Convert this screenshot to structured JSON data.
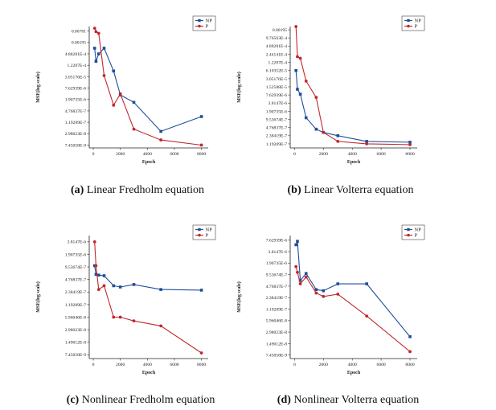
{
  "series_styles": [
    {
      "name": "NP",
      "color": "#1f4e99",
      "marker": "square"
    },
    {
      "name": "P",
      "color": "#c0282d",
      "marker": "circle"
    }
  ],
  "chart_data": [
    {
      "type": "line",
      "caption_tag": "(a)",
      "caption_text": "Linear Fredholm equation",
      "xlabel": "Epoch",
      "ylabel": "MSE(log scale)",
      "yscale": "log2",
      "xlim": [
        -300,
        8500
      ],
      "xticks": [
        0,
        2000,
        4000,
        6000,
        8000
      ],
      "xtick_labels": [
        "0",
        "2000",
        "4000",
        "6000",
        "8000"
      ],
      "ylim_log2": [
        -27.5,
        -6.2
      ],
      "ytick_log2": [
        -7,
        -9,
        -11,
        -13,
        -15,
        -17,
        -19,
        -21,
        -23,
        -25,
        -27
      ],
      "ytick_labels": [
        "0.00781",
        "0.00195",
        "4.88281E-4",
        "1.2207E-4",
        "3.05176E-5",
        "7.62939E-6",
        "1.90735E-6",
        "4.76837E-7",
        "1.19209E-7",
        "2.98023E-8",
        "7.45058E-9"
      ],
      "series": [
        {
          "name": "NP",
          "x": [
            100,
            200,
            400,
            800,
            1500,
            2000,
            3000,
            5000,
            8000
          ],
          "log2_values": [
            -10.0,
            -12.3,
            -11.0,
            -10.0,
            -14.0,
            -18.2,
            -19.5,
            -24.6,
            -22.0
          ]
        },
        {
          "name": "P",
          "x": [
            100,
            200,
            400,
            800,
            1500,
            2000,
            3000,
            5000,
            8000
          ],
          "log2_values": [
            -6.5,
            -7.1,
            -7.4,
            -14.8,
            -20.0,
            -18.0,
            -24.2,
            -26.1,
            -27.0
          ]
        }
      ]
    },
    {
      "type": "line",
      "caption_tag": "(b)",
      "caption_text": "Linear Volterra equation",
      "xlabel": "Epoch",
      "ylabel": "MSE(log scale)",
      "yscale": "log2",
      "xlim": [
        -300,
        8500
      ],
      "xticks": [
        0,
        2000,
        4000,
        6000,
        8000
      ],
      "xtick_labels": [
        "0",
        "2000",
        "4000",
        "6000",
        "8000"
      ],
      "ylim_log2": [
        -23.5,
        -8.6
      ],
      "ytick_log2": [
        -9,
        -10,
        -11,
        -12,
        -13,
        -14,
        -15,
        -16,
        -17,
        -18,
        -19,
        -20,
        -21,
        -22,
        -23
      ],
      "ytick_labels": [
        "0.00195",
        "9.76563E-4",
        "4.88281E-4",
        "2.44141E-4",
        "1.2207E-4",
        "6.10352E-5",
        "3.05176E-5",
        "1.52588E-5",
        "7.62939E-6",
        "3.8147E-6",
        "1.90735E-6",
        "9.53674E-7",
        "4.76837E-7",
        "2.38419E-7",
        "1.19209E-7"
      ],
      "series": [
        {
          "name": "NP",
          "x": [
            100,
            200,
            400,
            800,
            1500,
            2000,
            3000,
            5000,
            8000
          ],
          "log2_values": [
            -14.0,
            -16.3,
            -16.9,
            -19.8,
            -21.2,
            -21.6,
            -22.0,
            -22.7,
            -22.8
          ]
        },
        {
          "name": "P",
          "x": [
            100,
            200,
            400,
            800,
            1500,
            2000,
            3000,
            5000,
            8000
          ],
          "log2_values": [
            -8.6,
            -12.3,
            -12.5,
            -15.3,
            -17.3,
            -21.6,
            -22.7,
            -23.0,
            -23.1
          ]
        }
      ]
    },
    {
      "type": "line",
      "caption_tag": "(c)",
      "caption_text": "Nonlinear Fredholm equation",
      "xlabel": "Epoch",
      "ylabel": "MSE(log scale)",
      "yscale": "log2",
      "xlim": [
        -300,
        8500
      ],
      "xticks": [
        0,
        2000,
        4000,
        6000,
        8000
      ],
      "xtick_labels": [
        "0",
        "2000",
        "4000",
        "6000",
        "8000"
      ],
      "ylim_log2": [
        -27.3,
        -17.5
      ],
      "ytick_log2": [
        -18,
        -19,
        -20,
        -21,
        -22,
        -23,
        -24,
        -25,
        -26,
        -27
      ],
      "ytick_labels": [
        "3.8147E-6",
        "1.90735E-6",
        "9.53674E-7",
        "4.76837E-7",
        "2.38419E-7",
        "1.19209E-7",
        "5.96046E-8",
        "2.98023E-8",
        "1.49012E-8",
        "7.45058E-9"
      ],
      "series": [
        {
          "name": "NP",
          "x": [
            100,
            200,
            400,
            800,
            1500,
            2000,
            3000,
            5000,
            8000
          ],
          "log2_values": [
            -19.9,
            -20.6,
            -20.65,
            -20.7,
            -21.5,
            -21.6,
            -21.4,
            -21.8,
            -21.85
          ]
        },
        {
          "name": "P",
          "x": [
            100,
            200,
            400,
            800,
            1500,
            2000,
            3000,
            5000,
            8000
          ],
          "log2_values": [
            -18.0,
            -19.9,
            -21.8,
            -21.5,
            -24.0,
            -24.0,
            -24.3,
            -24.7,
            -26.85
          ]
        }
      ]
    },
    {
      "type": "line",
      "caption_tag": "(d)",
      "caption_text": "Nonlinear Volterra equation",
      "xlabel": "Epoch",
      "ylabel": "MSE(log scale)",
      "yscale": "log2",
      "xlim": [
        -300,
        8500
      ],
      "xticks": [
        0,
        2000,
        4000,
        6000,
        8000
      ],
      "xtick_labels": [
        "0",
        "2000",
        "4000",
        "6000",
        "8000"
      ],
      "ylim_log2": [
        -27.3,
        -16.6
      ],
      "ytick_log2": [
        -17,
        -18,
        -19,
        -20,
        -21,
        -22,
        -23,
        -24,
        -25,
        -26,
        -27
      ],
      "ytick_labels": [
        "7.62939E-6",
        "3.8147E-6",
        "1.90735E-6",
        "9.53674E-7",
        "4.76837E-7",
        "2.38419E-7",
        "1.19209E-7",
        "5.96046E-8",
        "2.98023E-8",
        "1.49012E-8",
        "7.45058E-9"
      ],
      "series": [
        {
          "name": "NP",
          "x": [
            100,
            200,
            400,
            800,
            1500,
            2000,
            3000,
            5000,
            8000
          ],
          "log2_values": [
            -17.4,
            -17.1,
            -20.5,
            -19.9,
            -21.3,
            -21.4,
            -20.8,
            -20.8,
            -25.4
          ]
        },
        {
          "name": "P",
          "x": [
            100,
            200,
            400,
            800,
            1500,
            2000,
            3000,
            5000,
            8000
          ],
          "log2_values": [
            -19.3,
            -19.8,
            -20.8,
            -20.2,
            -21.6,
            -21.9,
            -21.7,
            -23.6,
            -26.7
          ]
        }
      ]
    }
  ]
}
